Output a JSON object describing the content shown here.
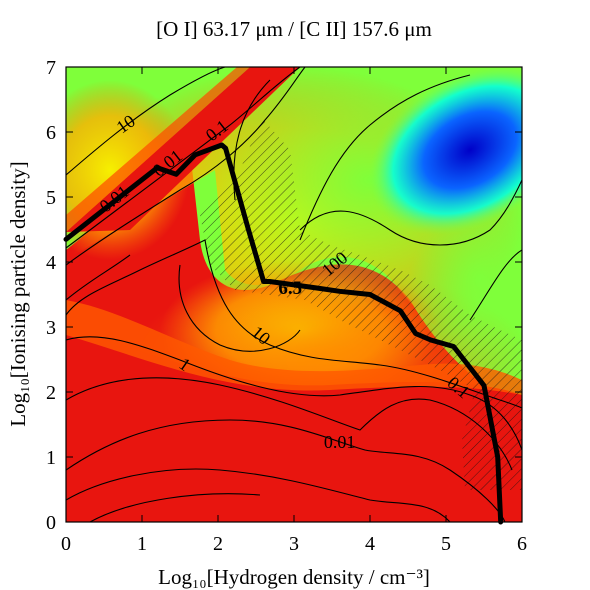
{
  "chart_data": {
    "type": "heatmap",
    "title": "[O I] 63.17 μm / [C II] 157.6 μm",
    "xlabel": "Log₁₀[Hydrogen density / cm⁻³]",
    "ylabel": "Log₁₀[Ionising particle density]",
    "xlim": [
      0,
      6
    ],
    "ylim": [
      0,
      7
    ],
    "xticks": [
      "0",
      "1",
      "2",
      "3",
      "4",
      "5",
      "6"
    ],
    "yticks": [
      "0",
      "1",
      "2",
      "3",
      "4",
      "5",
      "6",
      "7"
    ],
    "grid": false,
    "colormap": [
      "#e8150f",
      "#ff7d00",
      "#f6f000",
      "#7fff3a",
      "#00ffe6",
      "#0a64ff",
      "#0000c8"
    ],
    "contour_labels": [
      {
        "text": "10",
        "x": 0.8,
        "y": 6.1,
        "rotate": -35
      },
      {
        "text": "0.1",
        "x": 2.0,
        "y": 6.0,
        "rotate": -38
      },
      {
        "text": "0.01",
        "x": 1.35,
        "y": 5.5,
        "rotate": -38
      },
      {
        "text": "0.01",
        "x": 0.65,
        "y": 4.95,
        "rotate": -38
      },
      {
        "text": "100",
        "x": 3.55,
        "y": 3.95,
        "rotate": -40
      },
      {
        "text": "10",
        "x": 2.55,
        "y": 2.85,
        "rotate": 40
      },
      {
        "text": "1",
        "x": 1.55,
        "y": 2.4,
        "rotate": 35
      },
      {
        "text": "0.1",
        "x": 5.15,
        "y": 2.05,
        "rotate": 40
      },
      {
        "text": "0.01",
        "x": 3.6,
        "y": 1.2,
        "rotate": 0
      }
    ],
    "highlight_contour": {
      "label": "6.5",
      "label_at": {
        "x": 2.95,
        "y": 3.6
      },
      "points": [
        [
          0,
          4.35
        ],
        [
          1.2,
          5.45
        ],
        [
          1.45,
          5.35
        ],
        [
          1.7,
          5.65
        ],
        [
          2.05,
          5.8
        ],
        [
          2.1,
          5.75
        ],
        [
          2.4,
          4.5
        ],
        [
          2.6,
          3.7
        ],
        [
          2.68,
          3.7
        ],
        [
          3.3,
          3.6
        ],
        [
          3.6,
          3.55
        ],
        [
          4.0,
          3.5
        ],
        [
          4.4,
          3.25
        ],
        [
          4.6,
          2.9
        ],
        [
          4.8,
          2.8
        ],
        [
          5.1,
          2.7
        ],
        [
          5.5,
          2.1
        ],
        [
          5.68,
          1.0
        ],
        [
          5.72,
          0.0
        ]
      ]
    }
  }
}
